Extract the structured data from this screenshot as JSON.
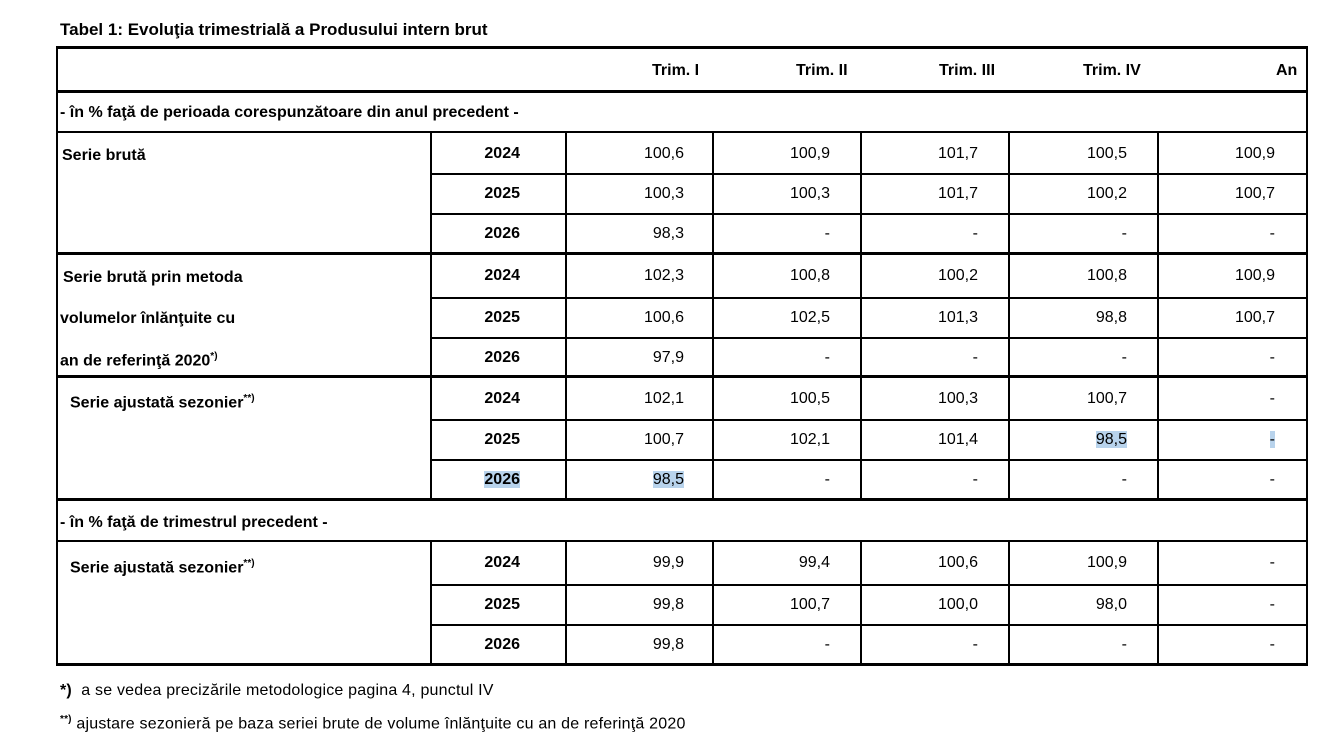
{
  "title": "Tabel 1: Evoluţia trimestrială a Produsului intern brut",
  "columns": [
    "Trim. I",
    "Trim. II",
    "Trim. III",
    "Trim. IV",
    "An"
  ],
  "sections": [
    {
      "label": "- în % faţă de perioada corespunzătoare din anul precedent -",
      "groups": [
        {
          "label_lines": [
            "Serie brută"
          ],
          "sup": "",
          "rows": [
            {
              "year": "2024",
              "values": [
                "100,6",
                "100,9",
                "101,7",
                "100,5",
                "100,9"
              ]
            },
            {
              "year": "2025",
              "values": [
                "100,3",
                "100,3",
                "101,7",
                "100,2",
                "100,7"
              ]
            },
            {
              "year": "2026",
              "values": [
                "98,3",
                "-",
                "-",
                "-",
                "-"
              ]
            }
          ]
        },
        {
          "label_lines": [
            "Serie brută prin metoda",
            "volumelor înlănţuite cu",
            "an de referinţă 2020"
          ],
          "sup": "*)",
          "rows": [
            {
              "year": "2024",
              "values": [
                "102,3",
                "100,8",
                "100,2",
                "100,8",
                "100,9"
              ]
            },
            {
              "year": "2025",
              "values": [
                "100,6",
                "102,5",
                "101,3",
                "98,8",
                "100,7"
              ]
            },
            {
              "year": "2026",
              "values": [
                "97,9",
                "-",
                "-",
                "-",
                "-"
              ]
            }
          ]
        },
        {
          "label_lines": [
            "Serie ajustată sezonier"
          ],
          "sup": "**)",
          "rows": [
            {
              "year": "2024",
              "values": [
                "102,1",
                "100,5",
                "100,3",
                "100,7",
                "-"
              ]
            },
            {
              "year": "2025",
              "values": [
                "100,7",
                "102,1",
                "101,4",
                "98,5",
                "-"
              ]
            },
            {
              "year": "2026",
              "values": [
                "98,5",
                "-",
                "-",
                "-",
                "-"
              ]
            }
          ]
        }
      ]
    },
    {
      "label": "- în % faţă de trimestrul precedent -",
      "groups": [
        {
          "label_lines": [
            "Serie ajustată sezonier"
          ],
          "sup": "**)",
          "rows": [
            {
              "year": "2024",
              "values": [
                "99,9",
                "99,4",
                "100,6",
                "100,9",
                "-"
              ]
            },
            {
              "year": "2025",
              "values": [
                "99,8",
                "100,7",
                "100,0",
                "98,0",
                "-"
              ]
            },
            {
              "year": "2026",
              "values": [
                "99,8",
                "-",
                "-",
                "-",
                "-"
              ]
            }
          ]
        }
      ]
    }
  ],
  "notes": {
    "note1_mark": "*)",
    "note1_text": "a se vedea precizările metodologice pagina 4, punctul IV",
    "note2_mark": "**)",
    "note2_text": "ajustare sezonieră pe baza seriei brute de volume înlănţuite cu an de referinţă 2020"
  }
}
